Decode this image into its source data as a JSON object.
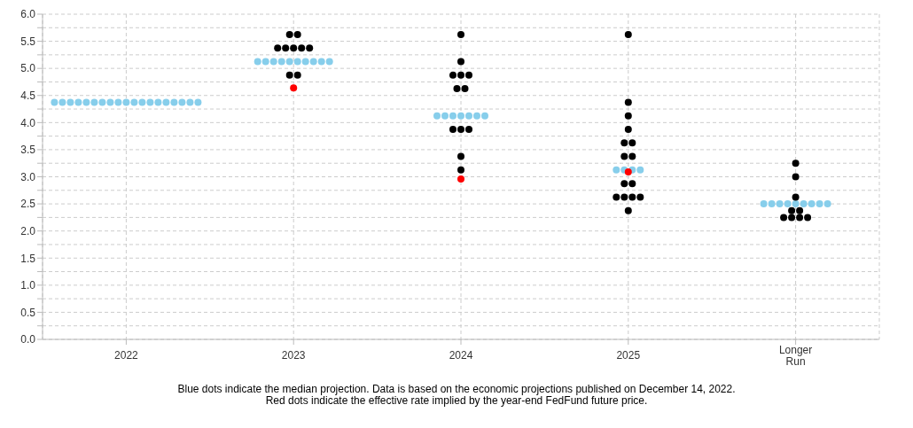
{
  "chart_data": {
    "type": "scatter",
    "categories": [
      "2022",
      "2023",
      "2024",
      "2025",
      "Longer Run"
    ],
    "ylim": [
      0,
      6
    ],
    "yticks": [
      {
        "value": 0,
        "label": "0.0"
      },
      {
        "value": 0.25,
        "label": null
      },
      {
        "value": 0.5,
        "label": "0.5"
      },
      {
        "value": 0.75,
        "label": null
      },
      {
        "value": 1,
        "label": "1.0"
      },
      {
        "value": 1.25,
        "label": null
      },
      {
        "value": 1.5,
        "label": "1.5"
      },
      {
        "value": 1.75,
        "label": null
      },
      {
        "value": 2,
        "label": "2.0"
      },
      {
        "value": 2.25,
        "label": null
      },
      {
        "value": 2.5,
        "label": "2.5"
      },
      {
        "value": 2.75,
        "label": null
      },
      {
        "value": 3,
        "label": "3.0"
      },
      {
        "value": 3.25,
        "label": null
      },
      {
        "value": 3.5,
        "label": "3.5"
      },
      {
        "value": 3.75,
        "label": null
      },
      {
        "value": 4,
        "label": "4.0"
      },
      {
        "value": 4.25,
        "label": null
      },
      {
        "value": 4.5,
        "label": "4.5"
      },
      {
        "value": 4.75,
        "label": null
      },
      {
        "value": 5,
        "label": "5.0"
      },
      {
        "value": 5.25,
        "label": null
      },
      {
        "value": 5.5,
        "label": "5.5"
      },
      {
        "value": 5.75,
        "label": null
      },
      {
        "value": 6,
        "label": "6.0"
      }
    ],
    "grid": true,
    "marker": "circle",
    "series": [
      {
        "color": "#87ceeb",
        "values": [
          4.375,
          5.125,
          4.125,
          3.125,
          2.5
        ]
      },
      {
        "color": "#87ceeb",
        "values": [
          4.375,
          5.125,
          4.125,
          3.125,
          2.5
        ]
      },
      {
        "color": "#87ceeb",
        "values": [
          4.375,
          5.125,
          4.125,
          3.125,
          2.5
        ]
      },
      {
        "color": "#87ceeb",
        "values": [
          4.375,
          5.125,
          4.125,
          3.125,
          2.5
        ]
      },
      {
        "color": "#87ceeb",
        "values": [
          4.375,
          5.125,
          4.125,
          null,
          2.5
        ]
      },
      {
        "color": "#87ceeb",
        "values": [
          4.375,
          5.125,
          4.125,
          null,
          2.5
        ]
      },
      {
        "color": "#87ceeb",
        "values": [
          4.375,
          5.125,
          4.125,
          null,
          2.5
        ]
      },
      {
        "color": "#87ceeb",
        "values": [
          4.375,
          5.125,
          null,
          null,
          2.5
        ]
      },
      {
        "color": "#87ceeb",
        "values": [
          4.375,
          5.125,
          null,
          null,
          2.5
        ]
      },
      {
        "color": "#87ceeb",
        "values": [
          4.375,
          5.125,
          null,
          null,
          null
        ]
      },
      {
        "color": "#87ceeb",
        "values": [
          4.375,
          null,
          null,
          null,
          null
        ]
      },
      {
        "color": "#87ceeb",
        "values": [
          4.375,
          null,
          null,
          null,
          null
        ]
      },
      {
        "color": "#87ceeb",
        "values": [
          4.375,
          null,
          null,
          null,
          null
        ]
      },
      {
        "color": "#87ceeb",
        "values": [
          4.375,
          null,
          null,
          null,
          null
        ]
      },
      {
        "color": "#87ceeb",
        "values": [
          4.375,
          null,
          null,
          null,
          null
        ]
      },
      {
        "color": "#87ceeb",
        "values": [
          4.375,
          null,
          null,
          null,
          null
        ]
      },
      {
        "color": "#87ceeb",
        "values": [
          4.375,
          null,
          null,
          null,
          null
        ]
      },
      {
        "color": "#87ceeb",
        "values": [
          4.375,
          null,
          null,
          null,
          null
        ]
      },
      {
        "color": "#87ceeb",
        "values": [
          4.375,
          null,
          null,
          null,
          null
        ]
      },
      {
        "color": "#000000",
        "values": [
          null,
          5.625,
          5.625,
          5.625,
          3.25
        ]
      },
      {
        "color": "#000000",
        "values": [
          null,
          5.625,
          5.125,
          4.375,
          3.0
        ]
      },
      {
        "color": "#000000",
        "values": [
          null,
          5.375,
          4.875,
          4.125,
          2.625
        ]
      },
      {
        "color": "#000000",
        "values": [
          null,
          5.375,
          4.875,
          3.875,
          2.375
        ]
      },
      {
        "color": "#000000",
        "values": [
          null,
          5.375,
          4.875,
          3.625,
          2.375
        ]
      },
      {
        "color": "#000000",
        "values": [
          null,
          5.375,
          4.625,
          3.625,
          2.25
        ]
      },
      {
        "color": "#000000",
        "values": [
          null,
          5.375,
          4.625,
          3.375,
          2.25
        ]
      },
      {
        "color": "#000000",
        "values": [
          null,
          4.875,
          3.875,
          3.375,
          2.25
        ]
      },
      {
        "color": "#000000",
        "values": [
          null,
          4.875,
          3.875,
          2.875,
          2.25
        ]
      },
      {
        "color": "#000000",
        "values": [
          null,
          null,
          3.875,
          2.875,
          null
        ]
      },
      {
        "color": "#000000",
        "values": [
          null,
          null,
          3.375,
          2.625,
          null
        ]
      },
      {
        "color": "#000000",
        "values": [
          null,
          null,
          3.125,
          2.625,
          null
        ]
      },
      {
        "color": "#000000",
        "values": [
          null,
          null,
          null,
          2.625,
          null
        ]
      },
      {
        "color": "#000000",
        "values": [
          null,
          null,
          null,
          2.625,
          null
        ]
      },
      {
        "color": "#000000",
        "values": [
          null,
          null,
          null,
          2.375,
          null
        ]
      },
      {
        "color": "#ff0000",
        "values": [
          null,
          4.64,
          2.96,
          3.09,
          null
        ]
      }
    ],
    "annotations": [
      "Blue dots indicate the median projection. Data is based on the economic projections published on December 14, 2022.",
      "Red dots indicate the effective rate implied by the year-end FedFund future price."
    ]
  }
}
